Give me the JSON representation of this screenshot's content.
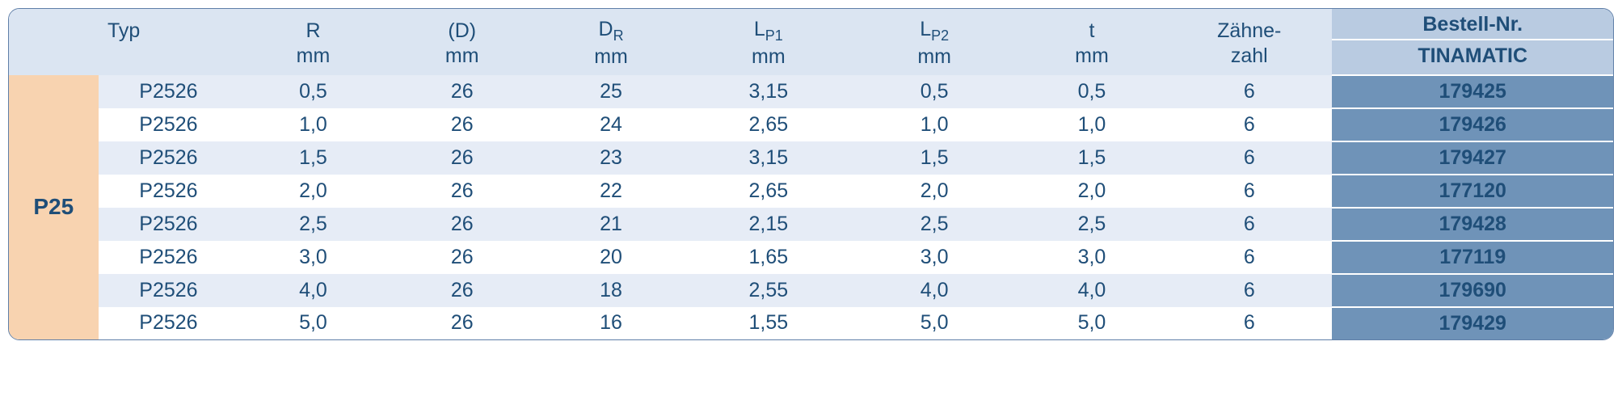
{
  "colors": {
    "border": "#5f7fa8",
    "header_bg": "#dbe5f2",
    "header_text": "#1f4e78",
    "bestell_head_bg": "#b9cbe1",
    "bestell_head_text": "#1f4e78",
    "group_bg": "#f8d3b0",
    "group_text": "#1f4e78",
    "stripe_a": "#e6ecf6",
    "stripe_b": "#ffffff",
    "body_text": "#1f4e78",
    "bestell_cell_bg": "#6f93b8",
    "bestell_cell_text": "#1f4e78",
    "bestell_row_sep": "#ffffff"
  },
  "columns": [
    {
      "key": "group",
      "line1": "",
      "line2": ""
    },
    {
      "key": "typ",
      "line1": "Typ",
      "line2": ""
    },
    {
      "key": "r",
      "line1": "R",
      "line2": "mm"
    },
    {
      "key": "d",
      "line1": "(D)",
      "line2": "mm"
    },
    {
      "key": "dr",
      "line1_html": "D<sub>R</sub>",
      "line2": "mm"
    },
    {
      "key": "lp1",
      "line1_html": "L<sub>P1</sub>",
      "line2": "mm"
    },
    {
      "key": "lp2",
      "line1_html": "L<sub>P2</sub>",
      "line2": "mm"
    },
    {
      "key": "t",
      "line1": "t",
      "line2": "mm"
    },
    {
      "key": "z",
      "line1": "Zähne-",
      "line2": "zahl"
    },
    {
      "key": "b",
      "line1": "Bestell-Nr.",
      "line2": "TINAMATIC",
      "bestell": true
    }
  ],
  "group_label": "P25",
  "rows": [
    {
      "typ": "P2526",
      "r": "0,5",
      "d": "26",
      "dr": "25",
      "lp1": "3,15",
      "lp2": "0,5",
      "t": "0,5",
      "z": "6",
      "b": "179425"
    },
    {
      "typ": "P2526",
      "r": "1,0",
      "d": "26",
      "dr": "24",
      "lp1": "2,65",
      "lp2": "1,0",
      "t": "1,0",
      "z": "6",
      "b": "179426"
    },
    {
      "typ": "P2526",
      "r": "1,5",
      "d": "26",
      "dr": "23",
      "lp1": "3,15",
      "lp2": "1,5",
      "t": "1,5",
      "z": "6",
      "b": "179427"
    },
    {
      "typ": "P2526",
      "r": "2,0",
      "d": "26",
      "dr": "22",
      "lp1": "2,65",
      "lp2": "2,0",
      "t": "2,0",
      "z": "6",
      "b": "177120"
    },
    {
      "typ": "P2526",
      "r": "2,5",
      "d": "26",
      "dr": "21",
      "lp1": "2,15",
      "lp2": "2,5",
      "t": "2,5",
      "z": "6",
      "b": "179428"
    },
    {
      "typ": "P2526",
      "r": "3,0",
      "d": "26",
      "dr": "20",
      "lp1": "1,65",
      "lp2": "3,0",
      "t": "3,0",
      "z": "6",
      "b": "177119"
    },
    {
      "typ": "P2526",
      "r": "4,0",
      "d": "26",
      "dr": "18",
      "lp1": "2,55",
      "lp2": "4,0",
      "t": "4,0",
      "z": "6",
      "b": "179690"
    },
    {
      "typ": "P2526",
      "r": "5,0",
      "d": "26",
      "dr": "16",
      "lp1": "1,55",
      "lp2": "5,0",
      "t": "5,0",
      "z": "6",
      "b": "179429"
    }
  ]
}
